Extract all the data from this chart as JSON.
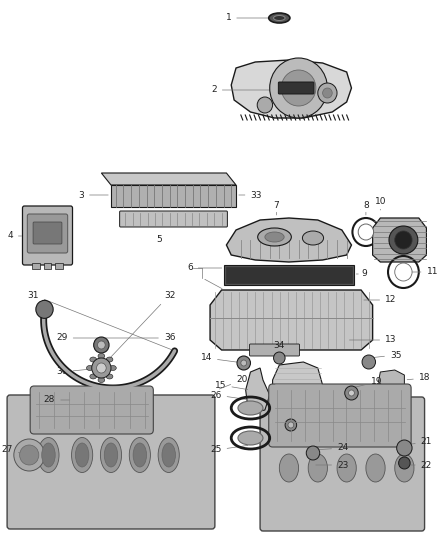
{
  "bg_color": "#ffffff",
  "fig_width": 4.38,
  "fig_height": 5.33,
  "dpi": 100,
  "line_color": "#555555",
  "label_color": "#222222",
  "dark": "#1a1a1a",
  "mid": "#888888",
  "light": "#cccccc",
  "font_size": 6.5
}
